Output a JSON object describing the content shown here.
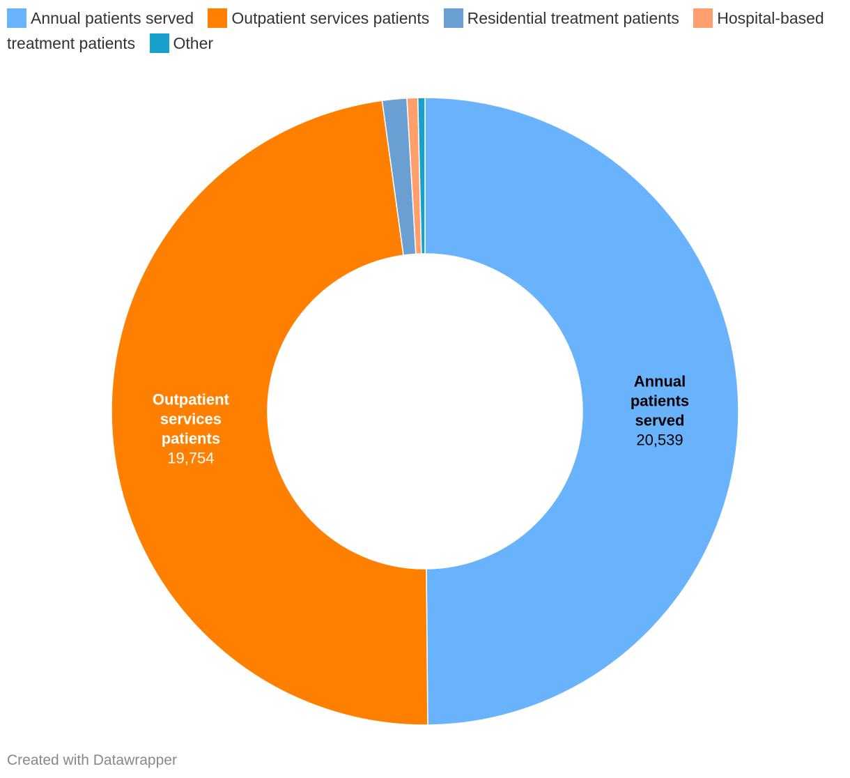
{
  "chart_data": {
    "type": "pie",
    "donut": true,
    "legend_position": "top-left",
    "categories": [
      "Annual patients served",
      "Outpatient services patients",
      "Residential treatment patients",
      "Hospital-based treatment patients",
      "Other"
    ],
    "values": [
      20539,
      19754,
      520,
      230,
      150
    ],
    "colors": [
      "#69b3fc",
      "#ff7f00",
      "#6a9fd3",
      "#ff9f6e",
      "#18a1cd"
    ],
    "labels": [
      {
        "name_lines": [
          "Annual",
          "patients",
          "served"
        ],
        "value": "20,539",
        "text_color": "#000000"
      },
      {
        "name_lines": [
          "Outpatient",
          "services",
          "patients"
        ],
        "value": "19,754",
        "text_color": "#ffffff"
      }
    ]
  },
  "legend": {
    "items": [
      {
        "label": "Annual patients served",
        "color": "#69b3fc"
      },
      {
        "label": "Outpatient services patients",
        "color": "#ff7f00"
      },
      {
        "label": "Residential treatment patients",
        "color": "#6a9fd3"
      },
      {
        "label": "Hospital-based treatment patients",
        "color": "#ff9f6e"
      },
      {
        "label": "Other",
        "color": "#18a1cd"
      }
    ]
  },
  "footer": {
    "credit": "Created with Datawrapper"
  }
}
